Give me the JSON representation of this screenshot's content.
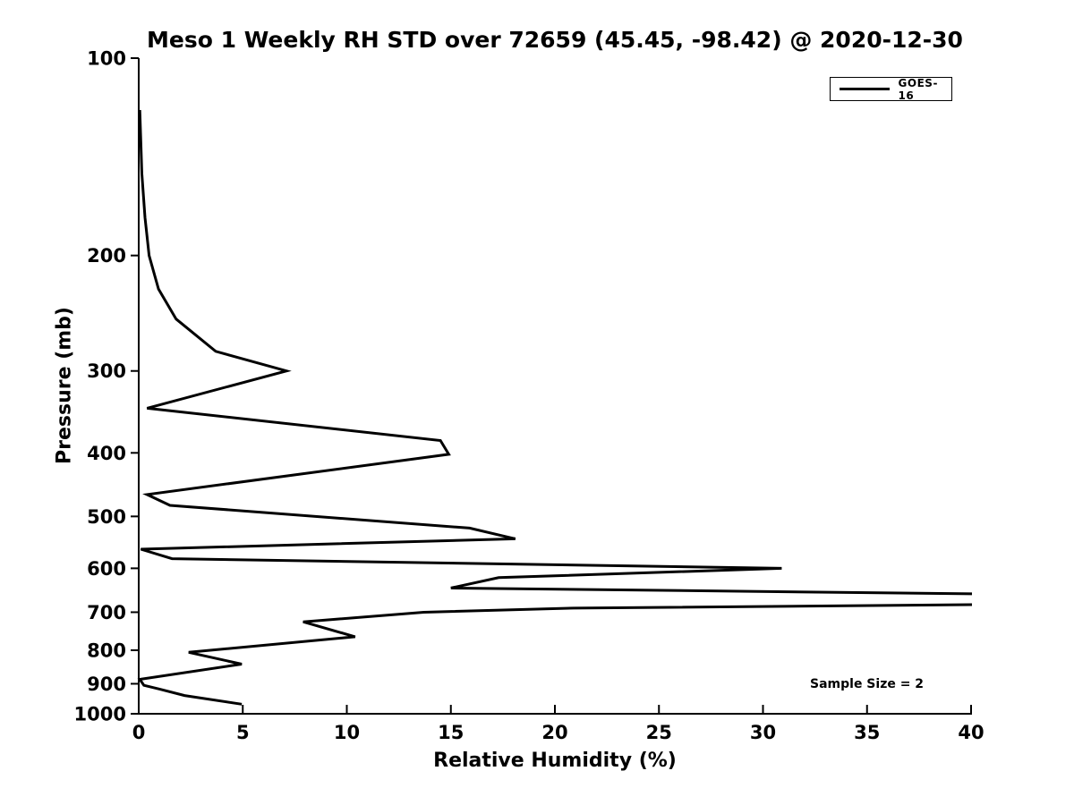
{
  "page": {
    "background_color": "#ffffff",
    "foreground_color": "#000000"
  },
  "chart_data": {
    "type": "line",
    "title": "Meso 1 Weekly RH STD over 72659 (45.45, -98.42) @ 2020-12-30",
    "xlabel": "Relative Humidity (%)",
    "ylabel": "Pressure (mb)",
    "xlim": [
      0,
      40
    ],
    "ylim": [
      100,
      1000
    ],
    "yscale": "log",
    "y_axis_inverted": true,
    "grid": false,
    "xticks": [
      0,
      5,
      10,
      15,
      20,
      25,
      30,
      35,
      40
    ],
    "yticks": [
      100,
      200,
      300,
      400,
      500,
      600,
      700,
      800,
      900,
      1000
    ],
    "legend": {
      "position": "top-right",
      "entries": [
        {
          "label": "GOES-16",
          "color": "#000000",
          "line_width": 3
        }
      ]
    },
    "annotation": "Sample Size = 2",
    "series": [
      {
        "name": "GOES-16",
        "color": "#000000",
        "points_pressure_rh": [
          [
            120,
            0.05
          ],
          [
            150,
            0.15
          ],
          [
            175,
            0.3
          ],
          [
            200,
            0.5
          ],
          [
            225,
            0.95
          ],
          [
            250,
            1.8
          ],
          [
            280,
            3.7
          ],
          [
            300,
            7.1
          ],
          [
            342,
            0.4
          ],
          [
            383,
            14.5
          ],
          [
            402,
            14.9
          ],
          [
            463,
            0.4
          ],
          [
            481,
            1.5
          ],
          [
            521,
            15.9
          ],
          [
            541,
            18.1
          ],
          [
            561,
            0.1
          ],
          [
            580,
            1.6
          ],
          [
            600,
            30.9
          ],
          [
            620,
            17.3
          ],
          [
            643,
            15.0
          ],
          [
            657,
            41.5
          ],
          [
            681,
            41.5
          ],
          [
            690,
            20.9
          ],
          [
            700,
            13.7
          ],
          [
            724,
            7.9
          ],
          [
            763,
            10.4
          ],
          [
            806,
            2.4
          ],
          [
            840,
            4.95
          ],
          [
            886,
            0.05
          ],
          [
            905,
            0.25
          ],
          [
            917,
            1.0
          ],
          [
            938,
            2.2
          ],
          [
            967,
            4.95
          ]
        ],
        "note_values_above_40_are_clipped_at_axis_edge": true
      }
    ]
  }
}
